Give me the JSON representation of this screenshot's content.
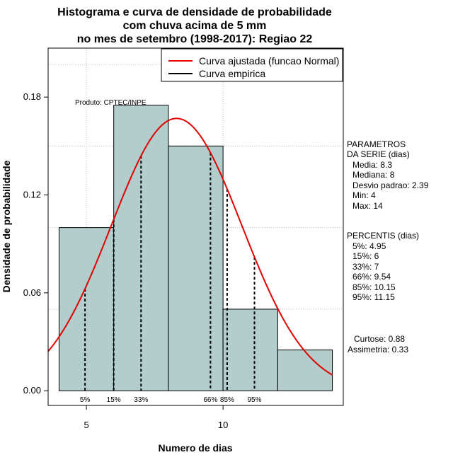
{
  "title_lines": [
    "Histograma e curva de densidade de probabilidade",
    "com chuva acima de 5 mm",
    "no mes de setembro (1998-2017): Regiao 22"
  ],
  "ylabel": "Densidade de probabilidade",
  "xlabel": "Numero de dias",
  "producer_note": "Produto: CPTEC/INPE",
  "legend": {
    "fitted": "Curva ajustada (funcao Normal)",
    "empirical": "Curva empirica",
    "fitted_color": "#e00000",
    "empirical_color": "#000000"
  },
  "params": {
    "heading": [
      "PARAMETROS",
      "DA SERIE (dias)"
    ],
    "lines": [
      "Media: 8.3",
      "Mediana: 8",
      "Desvio padrao: 2.39",
      "Min: 4",
      "Max: 14"
    ]
  },
  "percentis": {
    "heading": "PERCENTIS (dias)",
    "lines": [
      "5%: 4.95",
      "15%: 6",
      "33%: 7",
      "66%: 9.54",
      "85%: 10.15",
      "95%: 11.15"
    ]
  },
  "shape": {
    "lines": [
      "Curtose: 0.88",
      "Assimetria: 0.33"
    ]
  },
  "chart_data": {
    "type": "bar",
    "subtype": "histogram",
    "bar_color": "#b3cccc",
    "bins": [
      {
        "x0": 4,
        "x1": 6,
        "density": 0.1
      },
      {
        "x0": 6,
        "x1": 8,
        "density": 0.175
      },
      {
        "x0": 8,
        "x1": 10,
        "density": 0.15
      },
      {
        "x0": 10,
        "x1": 12,
        "density": 0.05
      },
      {
        "x0": 12,
        "x1": 14,
        "density": 0.025
      }
    ],
    "normal_fit": {
      "mean": 8.3,
      "sd": 2.39
    },
    "percentile_lines": [
      {
        "label": "5%",
        "x": 4.95
      },
      {
        "label": "15%",
        "x": 6
      },
      {
        "label": "33%",
        "x": 7
      },
      {
        "label": "66%",
        "x": 9.54
      },
      {
        "label": "85%",
        "x": 10.15
      },
      {
        "label": "95%",
        "x": 11.15
      }
    ],
    "xlim": [
      3.6,
      14.4
    ],
    "ylim": [
      -0.009,
      0.21
    ],
    "xticks": [
      5,
      10
    ],
    "yticks": [
      0.0,
      0.06,
      0.12,
      0.18
    ],
    "ytick_labels": [
      "0.00",
      "0.06",
      "0.12",
      "0.18"
    ],
    "grid": true,
    "grid_x": [
      5,
      10
    ],
    "grid_y": [
      0.05,
      0.1,
      0.15,
      0.2
    ],
    "legend_position": "top-right"
  }
}
